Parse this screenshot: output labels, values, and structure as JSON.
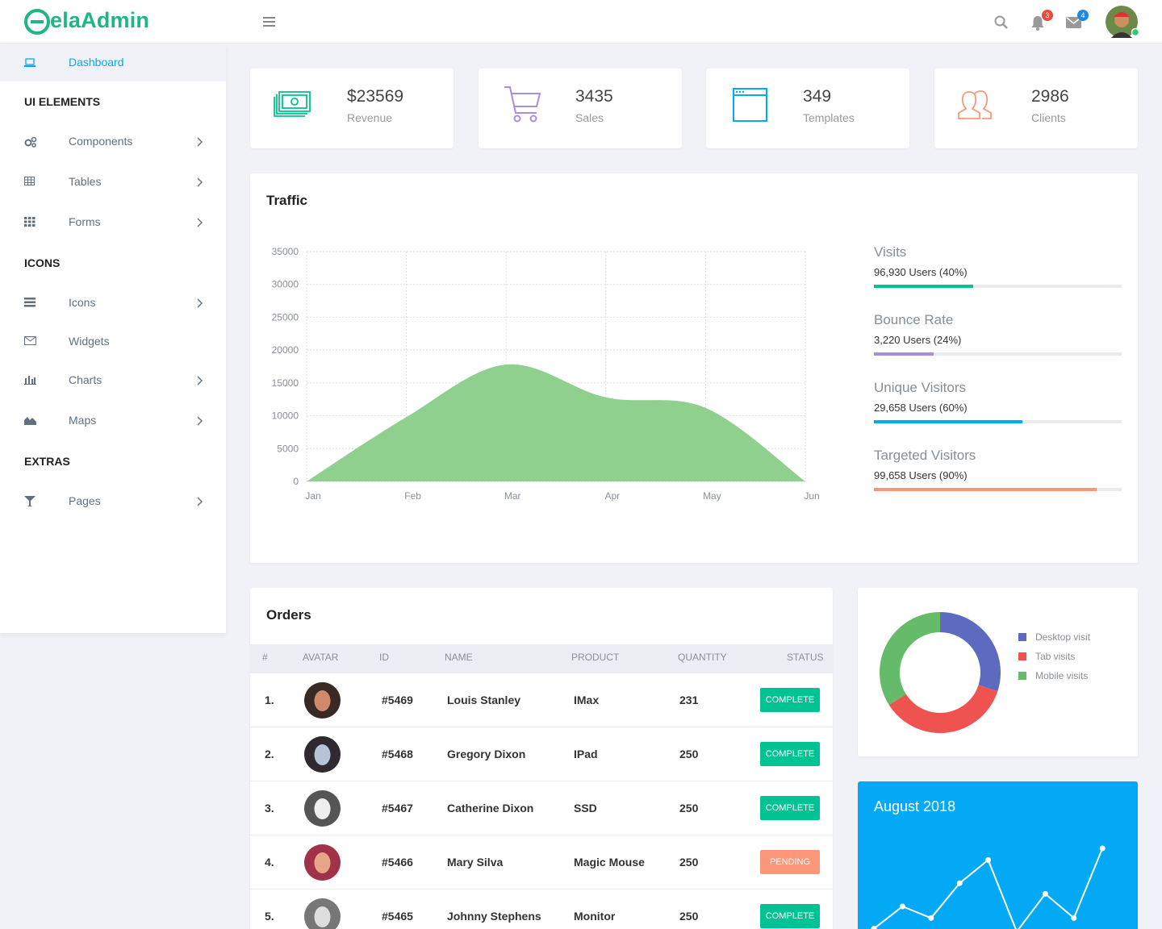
{
  "header": {
    "brand": "elaAdmin",
    "notifications": "3",
    "messages": "4"
  },
  "sidebar": {
    "active": "Dashboard",
    "sections": [
      {
        "title": "UI ELEMENTS",
        "items": [
          "Components",
          "Tables",
          "Forms"
        ]
      },
      {
        "title": "ICONS",
        "items": [
          "Icons",
          "Widgets",
          "Charts",
          "Maps"
        ]
      },
      {
        "title": "EXTRAS",
        "items": [
          "Pages"
        ]
      }
    ]
  },
  "stats": [
    {
      "value": "$23569",
      "label": "Revenue"
    },
    {
      "value": "3435",
      "label": "Sales"
    },
    {
      "value": "349",
      "label": "Templates"
    },
    {
      "value": "2986",
      "label": "Clients"
    }
  ],
  "traffic_stats": [
    {
      "label": "Visits",
      "detail": "96,930 Users (40%)",
      "percent": 40,
      "color": "#00c292"
    },
    {
      "label": "Bounce Rate",
      "detail": "3,220 Users (24%)",
      "percent": 24,
      "color": "#ab8ce4"
    },
    {
      "label": "Unique Visitors",
      "detail": "29,658 Users (60%)",
      "percent": 60,
      "color": "#03a9f3"
    },
    {
      "label": "Targeted Visitors",
      "detail": "99,658 Users (90%)",
      "percent": 90,
      "color": "#fb9678"
    }
  ],
  "orders": {
    "title": "Orders",
    "columns": [
      "#",
      "AVATAR",
      "ID",
      "NAME",
      "PRODUCT",
      "QUANTITY",
      "STATUS"
    ],
    "rows": [
      {
        "number": "1.",
        "id": "#5469",
        "name": "Louis Stanley",
        "product": "IMax",
        "quantity": "231",
        "status": "COMPLETE",
        "status_color": "#00c292"
      },
      {
        "number": "2.",
        "id": "#5468",
        "name": "Gregory Dixon",
        "product": "IPad",
        "quantity": "250",
        "status": "COMPLETE",
        "status_color": "#00c292"
      },
      {
        "number": "3.",
        "id": "#5467",
        "name": "Catherine Dixon",
        "product": "SSD",
        "quantity": "250",
        "status": "COMPLETE",
        "status_color": "#00c292"
      },
      {
        "number": "4.",
        "id": "#5466",
        "name": "Mary Silva",
        "product": "Magic Mouse",
        "quantity": "250",
        "status": "PENDING",
        "status_color": "#fb9678"
      },
      {
        "number": "5.",
        "id": "#5465",
        "name": "Johnny Stephens",
        "product": "Monitor",
        "quantity": "250",
        "status": "COMPLETE",
        "status_color": "#00c292"
      }
    ]
  },
  "chart_data": [
    {
      "type": "area",
      "title": "Traffic",
      "categories": [
        "Jan",
        "Feb",
        "Mar",
        "Apr",
        "May",
        "Jun"
      ],
      "values": [
        0,
        9800,
        17800,
        12800,
        11200,
        0
      ],
      "color": "#90d08f",
      "ylim": [
        0,
        35000
      ],
      "yticks": [
        0,
        5000,
        10000,
        15000,
        20000,
        25000,
        30000,
        35000
      ],
      "grid": true
    },
    {
      "type": "doughnut",
      "categories": [
        "Desktop visit",
        "Tab visits",
        "Mobile visits"
      ],
      "values": [
        30,
        36,
        34
      ],
      "colors": [
        "#5c6bc0",
        "#ef5350",
        "#66bb6a"
      ]
    },
    {
      "type": "line",
      "title": "August 2018",
      "values": [
        7,
        30,
        18,
        54,
        78,
        4,
        43,
        18,
        90
      ],
      "ylim": [
        0,
        100
      ],
      "color": "#ffffff"
    }
  ]
}
